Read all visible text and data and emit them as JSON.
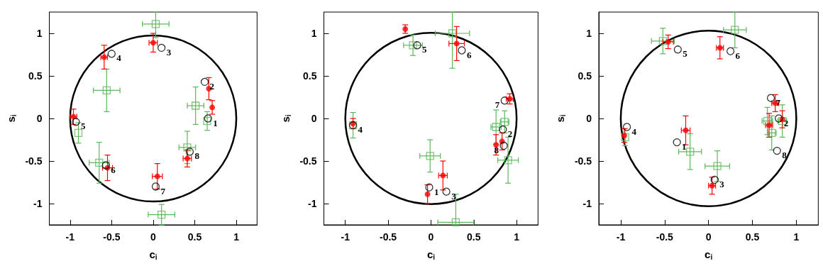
{
  "chart_data": [
    {
      "type": "scatter",
      "xlabel": "c$_{i}$",
      "ylabel": "s$_{i}$",
      "xlim": [
        -1.25,
        1.25
      ],
      "ylim": [
        -1.25,
        1.25
      ],
      "xticks": [
        -1,
        -0.5,
        0,
        0.5,
        1
      ],
      "yticks": [
        -1,
        -0.5,
        0,
        0.5,
        1
      ],
      "annotations": [
        {
          "text": "1",
          "x": 0.66,
          "y": 0
        },
        {
          "text": "2",
          "x": 0.62,
          "y": 0.43
        },
        {
          "text": "3",
          "x": 0.1,
          "y": 0.83
        },
        {
          "text": "4",
          "x": -0.5,
          "y": 0.76
        },
        {
          "text": "5",
          "x": -0.93,
          "y": -0.04
        },
        {
          "text": "6",
          "x": -0.57,
          "y": -0.55
        },
        {
          "text": "7",
          "x": 0.03,
          "y": -0.8
        },
        {
          "text": "8",
          "x": 0.44,
          "y": -0.39
        }
      ],
      "series": [
        {
          "marker": "square",
          "color": "#5cb85c",
          "x": [
            0.03,
            -0.56,
            0.51,
            0.65,
            -0.9,
            -0.65,
            0.41,
            0.1
          ],
          "values": [
            1.11,
            0.33,
            0.15,
            -0.03,
            -0.17,
            -0.52,
            -0.34,
            -1.13
          ],
          "xerrors": [
            0.16,
            0.16,
            0.1,
            null,
            null,
            0.12,
            0.1,
            0.16
          ],
          "errors": [
            [
              0.95,
              1.25
            ],
            0.25,
            0.22,
            0.11,
            0.12,
            0.24,
            0.19,
            0.12
          ]
        },
        {
          "marker": "circle",
          "color": "#ff0000",
          "x": [
            0,
            -0.59,
            0.67,
            0.71,
            -0.96,
            -0.55,
            0.05,
            0.41
          ],
          "values": [
            0.89,
            0.72,
            0.35,
            0.13,
            0.02,
            -0.58,
            -0.68,
            -0.47
          ],
          "xerrors": [
            0.05,
            0.04,
            null,
            null,
            0.04,
            0.06,
            0.06,
            0.05
          ],
          "errors": [
            0.11,
            0.14,
            0.13,
            0.08,
            0.09,
            0.15,
            0.15,
            0.1
          ]
        },
        {
          "marker": "circle",
          "color": "#000000",
          "x": [
            0.66,
            0.62,
            0.1,
            -0.5,
            -0.93,
            -0.57,
            0.03,
            0.44
          ],
          "values": [
            0,
            0.43,
            0.83,
            0.76,
            -0.04,
            -0.55,
            -0.8,
            -0.39
          ]
        }
      ]
    },
    {
      "type": "scatter",
      "xlabel": "c$_{i}$",
      "ylabel": "s$_{i}$",
      "xlim": [
        -1.25,
        1.25
      ],
      "ylim": [
        -1.25,
        1.25
      ],
      "xticks": [
        -1,
        -0.5,
        0,
        0.5,
        1
      ],
      "yticks": [
        -1,
        -0.5,
        0,
        0.5,
        1
      ],
      "annotations": [
        {
          "text": "1",
          "x": -0.02,
          "y": -0.81
        },
        {
          "text": "2",
          "x": 0.84,
          "y": -0.13
        },
        {
          "text": "3",
          "x": 0.18,
          "y": -0.86
        },
        {
          "text": "4",
          "x": -0.91,
          "y": -0.08
        },
        {
          "text": "5",
          "x": -0.16,
          "y": 0.86
        },
        {
          "text": "6",
          "x": 0.36,
          "y": 0.8
        },
        {
          "text": "7",
          "x": 0.86,
          "y": 0.21
        },
        {
          "text": "8",
          "x": 0.85,
          "y": -0.32
        }
      ],
      "series": [
        {
          "marker": "square",
          "color": "#5cb85c",
          "x": [
            0.25,
            -0.21,
            -0.91,
            0.86,
            0.76,
            -0.01,
            0.9,
            0.29
          ],
          "values": [
            1,
            0.86,
            -0.08,
            -0.04,
            -0.1,
            -0.44,
            -0.49,
            -1.22
          ],
          "xerrors": [
            0.2,
            0.11,
            null,
            0.05,
            0.06,
            0.12,
            0.12,
            0.21
          ],
          "errors": [
            [
              0.59,
              1.25
            ],
            0.12,
            0.15,
            0.13,
            0.2,
            0.19,
            0.27,
            [
              -1.25,
              -0.89
            ]
          ]
        },
        {
          "marker": "circle",
          "color": "#ff0000",
          "x": [
            -0.3,
            0.3,
            0.92,
            -0.91,
            0.83,
            0.76,
            0.14,
            -0.04
          ],
          "values": [
            1.05,
            0.88,
            0.23,
            -0.06,
            -0.27,
            -0.31,
            -0.67,
            -0.89
          ],
          "xerrors": [
            null,
            0.09,
            0.04,
            null,
            null,
            null,
            0.05,
            null
          ],
          "errors": [
            0.05,
            0.2,
            0.06,
            0.06,
            0.1,
            0.12,
            0.17,
            0.11
          ]
        },
        {
          "marker": "circle",
          "color": "#000000",
          "x": [
            -0.02,
            0.84,
            0.18,
            -0.91,
            -0.16,
            0.36,
            0.86,
            0.85
          ],
          "values": [
            -0.81,
            -0.13,
            -0.86,
            -0.08,
            0.86,
            0.8,
            0.21,
            -0.32
          ]
        }
      ]
    },
    {
      "type": "scatter",
      "xlabel": "c$_{i}$",
      "ylabel": "s$_{i}$",
      "xlim": [
        -1.25,
        1.25
      ],
      "ylim": [
        -1.25,
        1.25
      ],
      "xticks": [
        -1,
        -0.5,
        0,
        0.5,
        1
      ],
      "yticks": [
        -1,
        -0.5,
        0,
        0.5,
        1
      ],
      "annotations": [
        {
          "text": "1",
          "x": -0.36,
          "y": -0.28
        },
        {
          "text": "2",
          "x": 0.8,
          "y": 0
        },
        {
          "text": "3",
          "x": 0.07,
          "y": -0.72
        },
        {
          "text": "4",
          "x": -0.93,
          "y": -0.1
        },
        {
          "text": "5",
          "x": -0.35,
          "y": 0.81
        },
        {
          "text": "6",
          "x": 0.25,
          "y": 0.79
        },
        {
          "text": "7",
          "x": 0.71,
          "y": 0.24
        },
        {
          "text": "8",
          "x": 0.78,
          "y": -0.38
        }
      ],
      "series": [
        {
          "marker": "square",
          "color": "#5cb85c",
          "x": [
            0.3,
            -0.52,
            0.67,
            0.84,
            0.72,
            -0.95,
            -0.21,
            0.1
          ],
          "values": [
            1.04,
            0.91,
            -0.03,
            -0.03,
            -0.17,
            -0.22,
            -0.39,
            -0.56
          ],
          "xerrors": [
            0.13,
            0.13,
            0.06,
            0.05,
            0.05,
            null,
            0.13,
            0.14
          ],
          "errors": [
            [
              0.83,
              1.25
            ],
            0.15,
            0.16,
            0.19,
            0.2,
            0.1,
            0.21,
            0.18
          ]
        },
        {
          "marker": "circle",
          "color": "#ff0000",
          "x": [
            -0.46,
            0.13,
            0.76,
            0.84,
            0.69,
            -0.26,
            -0.96,
            0.04
          ],
          "values": [
            0.9,
            0.83,
            0.18,
            -0.01,
            -0.08,
            -0.14,
            -0.2,
            -0.79
          ],
          "xerrors": [
            0.06,
            0.04,
            0.04,
            null,
            0.04,
            0.05,
            null,
            0.04
          ],
          "errors": [
            0.08,
            0.13,
            0.1,
            0.1,
            0.14,
            0.17,
            0.08,
            0.1
          ]
        },
        {
          "marker": "circle",
          "color": "#000000",
          "x": [
            -0.36,
            0.8,
            0.07,
            -0.93,
            -0.35,
            0.25,
            0.71,
            0.78
          ],
          "values": [
            -0.28,
            0,
            -0.72,
            -0.1,
            0.81,
            0.79,
            0.24,
            -0.38
          ]
        }
      ]
    }
  ]
}
